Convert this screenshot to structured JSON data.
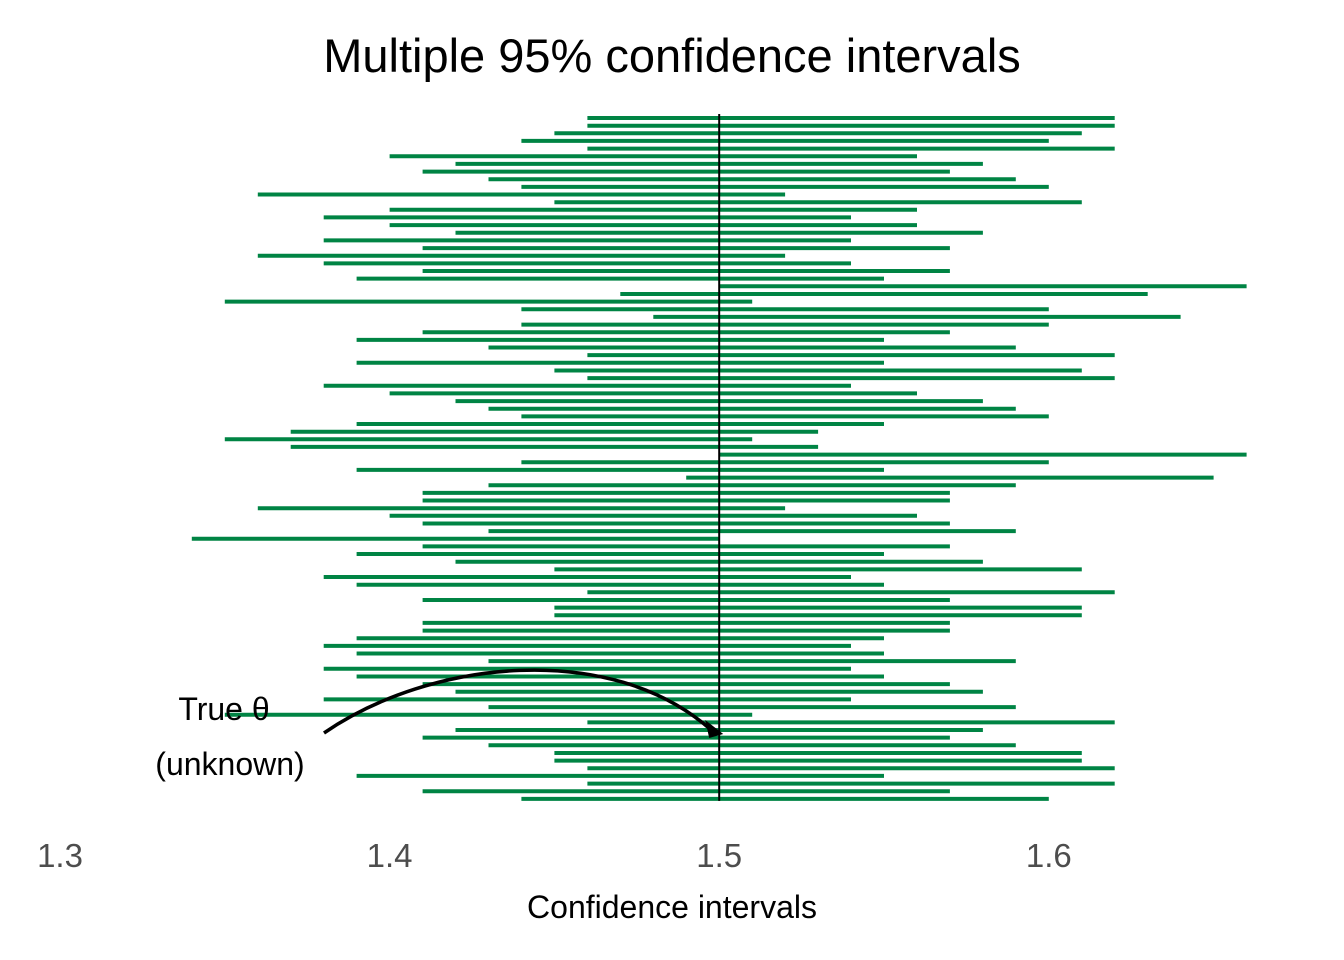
{
  "chart_data": {
    "type": "interval",
    "title": "Multiple 95% confidence intervals",
    "xlabel": "Confidence intervals",
    "ylabel": "",
    "xlim": [
      1.3,
      1.66
    ],
    "x_ticks": [
      {
        "value": 1.3,
        "label": "1.3"
      },
      {
        "value": 1.4,
        "label": "1.4"
      },
      {
        "value": 1.5,
        "label": "1.5"
      },
      {
        "value": 1.6,
        "label": "1.6"
      }
    ],
    "reference_value": 1.5,
    "interval_color": "#008444",
    "reference_color": "#000000",
    "annotation": {
      "line1": "True θ",
      "line2": "(unknown)",
      "target": 1.5
    },
    "intervals": [
      [
        1.46,
        1.62
      ],
      [
        1.46,
        1.62
      ],
      [
        1.45,
        1.61
      ],
      [
        1.44,
        1.6
      ],
      [
        1.46,
        1.62
      ],
      [
        1.4,
        1.56
      ],
      [
        1.42,
        1.58
      ],
      [
        1.41,
        1.57
      ],
      [
        1.43,
        1.59
      ],
      [
        1.44,
        1.6
      ],
      [
        1.36,
        1.52
      ],
      [
        1.45,
        1.61
      ],
      [
        1.4,
        1.56
      ],
      [
        1.38,
        1.54
      ],
      [
        1.4,
        1.56
      ],
      [
        1.42,
        1.58
      ],
      [
        1.38,
        1.54
      ],
      [
        1.41,
        1.57
      ],
      [
        1.36,
        1.52
      ],
      [
        1.38,
        1.54
      ],
      [
        1.41,
        1.57
      ],
      [
        1.39,
        1.55
      ],
      [
        1.5,
        1.66
      ],
      [
        1.47,
        1.63
      ],
      [
        1.35,
        1.51
      ],
      [
        1.44,
        1.6
      ],
      [
        1.48,
        1.64
      ],
      [
        1.44,
        1.6
      ],
      [
        1.41,
        1.57
      ],
      [
        1.39,
        1.55
      ],
      [
        1.43,
        1.59
      ],
      [
        1.46,
        1.62
      ],
      [
        1.39,
        1.55
      ],
      [
        1.45,
        1.61
      ],
      [
        1.46,
        1.62
      ],
      [
        1.38,
        1.54
      ],
      [
        1.4,
        1.56
      ],
      [
        1.42,
        1.58
      ],
      [
        1.43,
        1.59
      ],
      [
        1.44,
        1.6
      ],
      [
        1.39,
        1.55
      ],
      [
        1.37,
        1.53
      ],
      [
        1.35,
        1.51
      ],
      [
        1.37,
        1.53
      ],
      [
        1.5,
        1.66
      ],
      [
        1.44,
        1.6
      ],
      [
        1.39,
        1.55
      ],
      [
        1.49,
        1.65
      ],
      [
        1.43,
        1.59
      ],
      [
        1.41,
        1.57
      ],
      [
        1.41,
        1.57
      ],
      [
        1.36,
        1.52
      ],
      [
        1.4,
        1.56
      ],
      [
        1.41,
        1.57
      ],
      [
        1.43,
        1.59
      ],
      [
        1.34,
        1.5
      ],
      [
        1.41,
        1.57
      ],
      [
        1.39,
        1.55
      ],
      [
        1.42,
        1.58
      ],
      [
        1.45,
        1.61
      ],
      [
        1.38,
        1.54
      ],
      [
        1.39,
        1.55
      ],
      [
        1.46,
        1.62
      ],
      [
        1.41,
        1.57
      ],
      [
        1.45,
        1.61
      ],
      [
        1.45,
        1.61
      ],
      [
        1.41,
        1.57
      ],
      [
        1.41,
        1.57
      ],
      [
        1.39,
        1.55
      ],
      [
        1.38,
        1.54
      ],
      [
        1.39,
        1.55
      ],
      [
        1.43,
        1.59
      ],
      [
        1.38,
        1.54
      ],
      [
        1.39,
        1.55
      ],
      [
        1.41,
        1.57
      ],
      [
        1.42,
        1.58
      ],
      [
        1.38,
        1.54
      ],
      [
        1.43,
        1.59
      ],
      [
        1.35,
        1.51
      ],
      [
        1.46,
        1.62
      ],
      [
        1.42,
        1.58
      ],
      [
        1.41,
        1.57
      ],
      [
        1.43,
        1.59
      ],
      [
        1.45,
        1.61
      ],
      [
        1.45,
        1.61
      ],
      [
        1.46,
        1.62
      ],
      [
        1.39,
        1.55
      ],
      [
        1.46,
        1.62
      ],
      [
        1.41,
        1.57
      ],
      [
        1.44,
        1.6
      ]
    ]
  }
}
